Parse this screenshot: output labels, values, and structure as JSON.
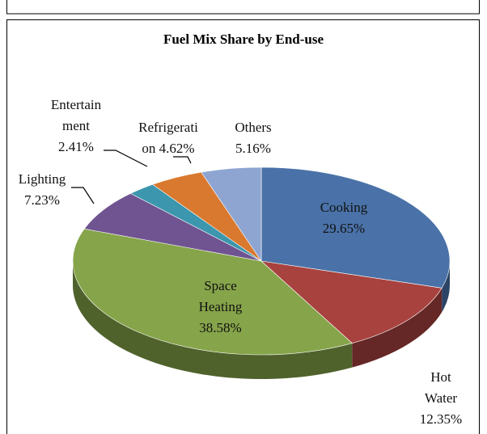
{
  "chart_data": {
    "type": "pie",
    "title": "Fuel Mix Share by End-use",
    "categories": [
      "Cooking",
      "Hot Water",
      "Space Heating",
      "Lighting",
      "Entertainment",
      "Refrigeration",
      "Others"
    ],
    "values": [
      29.65,
      12.35,
      38.58,
      7.23,
      2.41,
      4.62,
      5.16
    ],
    "value_labels": [
      "29.65%",
      "12.35%",
      "38.58%",
      "7.23%",
      "2.41%",
      "4.62%",
      "5.16%"
    ],
    "colors": [
      "#4a72a8",
      "#a8423f",
      "#86a44a",
      "#6f5491",
      "#3c96ae",
      "#d9792f",
      "#8ea5d1"
    ]
  }
}
